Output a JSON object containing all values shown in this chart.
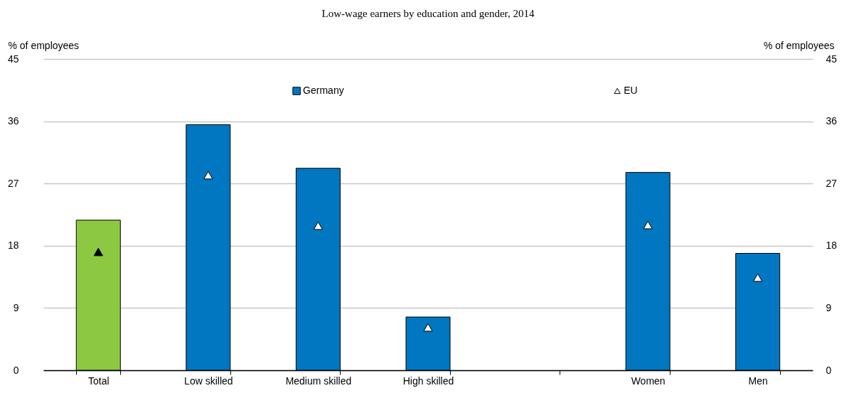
{
  "chart_data": {
    "type": "bar",
    "title": "Low-wage earners by education and gender, 2014",
    "ylabel": "% of employees",
    "y2label": "% of employees",
    "categories": [
      "Total",
      "Low skilled",
      "Medium skilled",
      "High skilled",
      null,
      "Women",
      "Men"
    ],
    "series": [
      {
        "name": "Germany",
        "color": "#0077c0",
        "colors": [
          "#8cc841",
          "#0077c0",
          "#0077c0",
          "#0077c0",
          null,
          "#0077c0",
          "#0077c0"
        ],
        "values": [
          21.7,
          35.5,
          29.2,
          7.7,
          null,
          28.6,
          16.9
        ]
      },
      {
        "name": "EU",
        "type": "scatter",
        "marker": "triangle",
        "color": "#ffffff",
        "colors": [
          "#000000",
          "#ffffff",
          "#ffffff",
          "#ffffff",
          null,
          "#ffffff",
          "#ffffff"
        ],
        "values": [
          17.1,
          28.2,
          20.9,
          6.2,
          null,
          21.0,
          13.4
        ]
      }
    ],
    "ylim": [
      0,
      45
    ],
    "yticks": [
      0,
      9,
      18,
      27,
      36,
      45
    ],
    "y2lim": [
      0,
      45
    ],
    "y2ticks": [
      0,
      9,
      18,
      27,
      36,
      45
    ],
    "grid": "y",
    "legend": "top"
  }
}
